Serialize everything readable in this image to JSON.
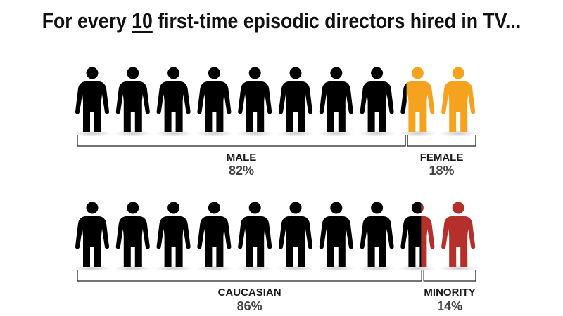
{
  "title": {
    "prefix": "For every ",
    "number": "10",
    "suffix": " first-time episodic directors hired in TV..."
  },
  "colors": {
    "base": "#000000",
    "female": "#F5A31F",
    "minority": "#B5302A"
  },
  "icon": "person-icon",
  "chart_data": [
    {
      "type": "pictograph",
      "total_icons": 10,
      "categories": [
        "MALE",
        "FEMALE"
      ],
      "percent_labels": [
        "82%",
        "18%"
      ],
      "values": [
        82,
        18
      ],
      "colors": [
        "#000000",
        "#F5A31F"
      ]
    },
    {
      "type": "pictograph",
      "total_icons": 10,
      "categories": [
        "CAUCASIAN",
        "MINORITY"
      ],
      "percent_labels": [
        "86%",
        "14%"
      ],
      "values": [
        86,
        14
      ],
      "colors": [
        "#000000",
        "#B5302A"
      ]
    }
  ]
}
